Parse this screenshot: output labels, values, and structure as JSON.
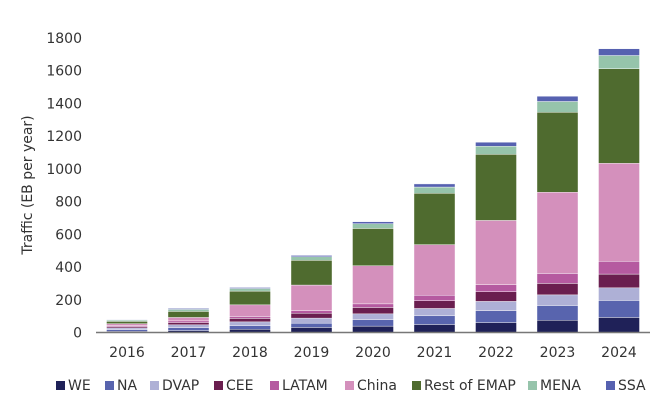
{
  "chart_data": {
    "type": "bar",
    "stacked": true,
    "title": "",
    "xlabel": "",
    "ylabel": "Traffic (EB per year)",
    "ylim": [
      0,
      1800
    ],
    "yticks": [
      0,
      200,
      400,
      600,
      800,
      1000,
      1200,
      1400,
      1600,
      1800
    ],
    "grid": false,
    "legend_position": "bottom",
    "categories": [
      "2016",
      "2017",
      "2018",
      "2019",
      "2020",
      "2021",
      "2022",
      "2023",
      "2024"
    ],
    "series": [
      {
        "name": "WE",
        "color": "#1f2158",
        "values": [
          8,
          12,
          20,
          31,
          39,
          49,
          61,
          75,
          92
        ]
      },
      {
        "name": "NA",
        "color": "#5864ae",
        "values": [
          10,
          17,
          21,
          26,
          39,
          53,
          72,
          90,
          104
        ]
      },
      {
        "name": "DVAP",
        "color": "#aeb0d6",
        "values": [
          10,
          18,
          24,
          31,
          36,
          45,
          57,
          65,
          77
        ]
      },
      {
        "name": "CEE",
        "color": "#6a1e4f",
        "values": [
          8,
          14,
          21,
          30,
          39,
          47,
          59,
          70,
          84
        ]
      },
      {
        "name": "LATAM",
        "color": "#b55aa0",
        "values": [
          6,
          10,
          12,
          15,
          22,
          34,
          43,
          61,
          78
        ]
      },
      {
        "name": "China",
        "color": "#d490bc",
        "values": [
          12,
          21,
          71,
          157,
          233,
          309,
          393,
          496,
          599
        ]
      },
      {
        "name": "Rest of EMAP",
        "color": "#4f6b2f",
        "values": [
          14,
          37,
          84,
          151,
          228,
          314,
          404,
          489,
          578
        ]
      },
      {
        "name": "MENA",
        "color": "#96c4ab",
        "values": [
          7,
          12,
          16,
          22,
          29,
          38,
          49,
          66,
          81
        ]
      },
      {
        "name": "SSA",
        "color": "#5661b0",
        "values": [
          3,
          6,
          6,
          8,
          12,
          19,
          25,
          32,
          41
        ]
      }
    ]
  }
}
